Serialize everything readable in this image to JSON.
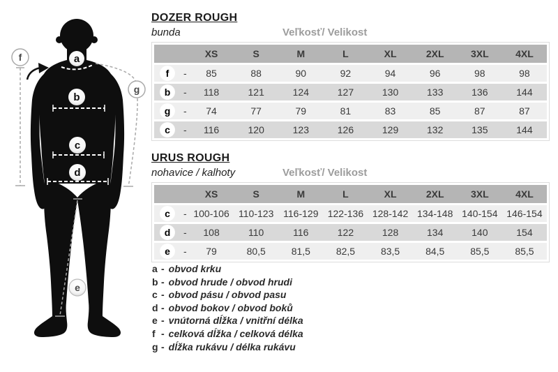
{
  "ui": {
    "separator": "-"
  },
  "colors": {
    "header_gray": "#b5b5b5",
    "row_light": "#efefef",
    "row_dark": "#d9d9d9",
    "text_dark": "#3a3a3a",
    "size_label_gray": "#9c9c9c",
    "silhouette_black": "#0e0e0e"
  },
  "sections": [
    {
      "title": "DOZER ROUGH",
      "subtitle": "bunda",
      "size_label": "Veľkosť/ Velikost",
      "columns": [
        "XS",
        "S",
        "M",
        "L",
        "XL",
        "2XL",
        "3XL",
        "4XL"
      ],
      "rows": [
        {
          "key": "f",
          "values": [
            "85",
            "88",
            "90",
            "92",
            "94",
            "96",
            "98",
            "98"
          ]
        },
        {
          "key": "b",
          "values": [
            "118",
            "121",
            "124",
            "127",
            "130",
            "133",
            "136",
            "144"
          ]
        },
        {
          "key": "g",
          "values": [
            "74",
            "77",
            "79",
            "81",
            "83",
            "85",
            "87",
            "87"
          ]
        },
        {
          "key": "c",
          "values": [
            "116",
            "120",
            "123",
            "126",
            "129",
            "132",
            "135",
            "144"
          ]
        }
      ]
    },
    {
      "title": "URUS ROUGH",
      "subtitle": "nohavice / kalhoty",
      "size_label": "Veľkosť/ Velikost",
      "columns": [
        "XS",
        "S",
        "M",
        "L",
        "XL",
        "2XL",
        "3XL",
        "4XL"
      ],
      "rows": [
        {
          "key": "c",
          "values": [
            "100-106",
            "110-123",
            "116-129",
            "122-136",
            "128-142",
            "134-148",
            "140-154",
            "146-154"
          ]
        },
        {
          "key": "d",
          "values": [
            "108",
            "110",
            "116",
            "122",
            "128",
            "134",
            "140",
            "154"
          ]
        },
        {
          "key": "e",
          "values": [
            "79",
            "80,5",
            "81,5",
            "82,5",
            "83,5",
            "84,5",
            "85,5",
            "85,5"
          ]
        }
      ]
    }
  ],
  "legend": [
    {
      "key": "a",
      "text": "obvod krku"
    },
    {
      "key": "b",
      "text": "obvod hrude / obvod hrudi"
    },
    {
      "key": "c",
      "text": "obvod pásu / obvod pasu"
    },
    {
      "key": "d",
      "text": "obvod bokov / obvod boků"
    },
    {
      "key": "e",
      "text": "vnútorná dĺžka / vnitřní délka"
    },
    {
      "key": "f",
      "text": "celková dĺžka / celková délka"
    },
    {
      "key": "g",
      "text": "dĺžka rukávu / délka rukávu"
    }
  ],
  "diagram": {
    "markers": [
      "a",
      "b",
      "c",
      "d",
      "e",
      "f",
      "g"
    ]
  }
}
